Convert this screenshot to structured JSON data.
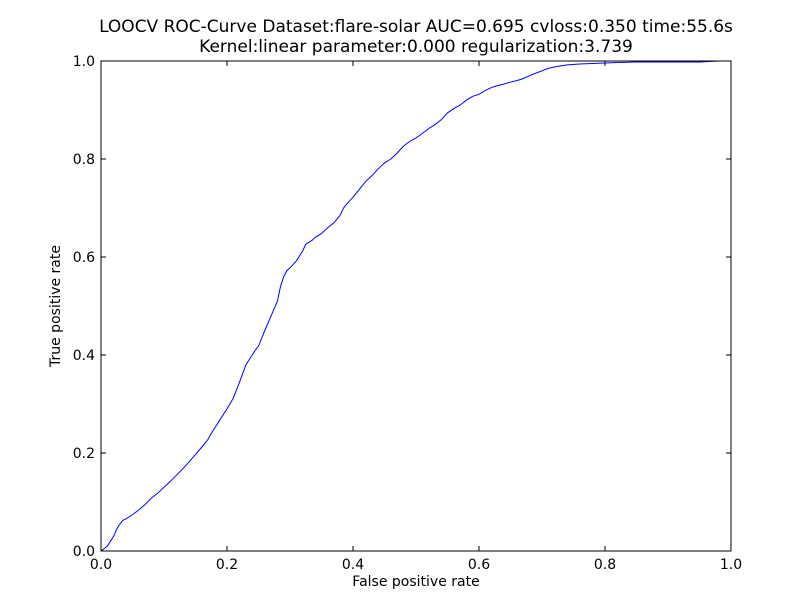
{
  "chart_data": {
    "type": "line",
    "title_line1": "LOOCV ROC-Curve Dataset:flare-solar AUC=0.695 cvloss:0.350 time:55.6s",
    "title_line2": "Kernel:linear parameter:0.000 regularization:3.739",
    "xlabel": "False positive rate",
    "ylabel": "True positive rate",
    "xlim": [
      0.0,
      1.0
    ],
    "ylim": [
      0.0,
      1.0
    ],
    "xticks": [
      "0.0",
      "0.2",
      "0.4",
      "0.6",
      "0.8",
      "1.0"
    ],
    "yticks": [
      "0.0",
      "0.2",
      "0.4",
      "0.6",
      "0.8",
      "1.0"
    ],
    "grid": false,
    "line_color": "#0000ff",
    "series": [
      {
        "x": [
          0.0,
          0.01,
          0.02,
          0.025,
          0.03,
          0.035,
          0.04,
          0.05,
          0.06,
          0.07,
          0.08,
          0.085,
          0.09,
          0.1,
          0.11,
          0.12,
          0.13,
          0.14,
          0.15,
          0.16,
          0.17,
          0.175,
          0.18,
          0.19,
          0.2,
          0.21,
          0.22,
          0.23,
          0.24,
          0.245,
          0.25,
          0.26,
          0.27,
          0.28,
          0.285,
          0.29,
          0.295,
          0.3,
          0.31,
          0.32,
          0.325,
          0.33,
          0.335,
          0.34,
          0.35,
          0.36,
          0.37,
          0.38,
          0.385,
          0.39,
          0.4,
          0.41,
          0.42,
          0.43,
          0.44,
          0.45,
          0.46,
          0.47,
          0.48,
          0.49,
          0.5,
          0.51,
          0.52,
          0.53,
          0.54,
          0.55,
          0.56,
          0.57,
          0.58,
          0.59,
          0.6,
          0.61,
          0.62,
          0.63,
          0.64,
          0.65,
          0.66,
          0.67,
          0.68,
          0.69,
          0.7,
          0.71,
          0.72,
          0.74,
          0.76,
          0.78,
          0.8,
          0.82,
          0.85,
          0.9,
          0.95,
          0.98,
          1.0
        ],
        "y": [
          0.0,
          0.01,
          0.03,
          0.045,
          0.055,
          0.063,
          0.066,
          0.074,
          0.084,
          0.095,
          0.108,
          0.113,
          0.118,
          0.13,
          0.142,
          0.155,
          0.168,
          0.182,
          0.197,
          0.212,
          0.228,
          0.24,
          0.25,
          0.27,
          0.29,
          0.312,
          0.345,
          0.38,
          0.4,
          0.41,
          0.418,
          0.45,
          0.48,
          0.51,
          0.54,
          0.56,
          0.572,
          0.578,
          0.592,
          0.612,
          0.626,
          0.63,
          0.634,
          0.64,
          0.648,
          0.66,
          0.67,
          0.686,
          0.7,
          0.708,
          0.722,
          0.738,
          0.754,
          0.766,
          0.78,
          0.792,
          0.8,
          0.812,
          0.826,
          0.836,
          0.843,
          0.852,
          0.862,
          0.87,
          0.88,
          0.894,
          0.903,
          0.91,
          0.92,
          0.928,
          0.932,
          0.94,
          0.946,
          0.95,
          0.953,
          0.957,
          0.96,
          0.964,
          0.97,
          0.975,
          0.98,
          0.985,
          0.988,
          0.992,
          0.994,
          0.995,
          0.996,
          0.997,
          0.998,
          0.998,
          0.998,
          1.0,
          1.0
        ]
      }
    ]
  }
}
